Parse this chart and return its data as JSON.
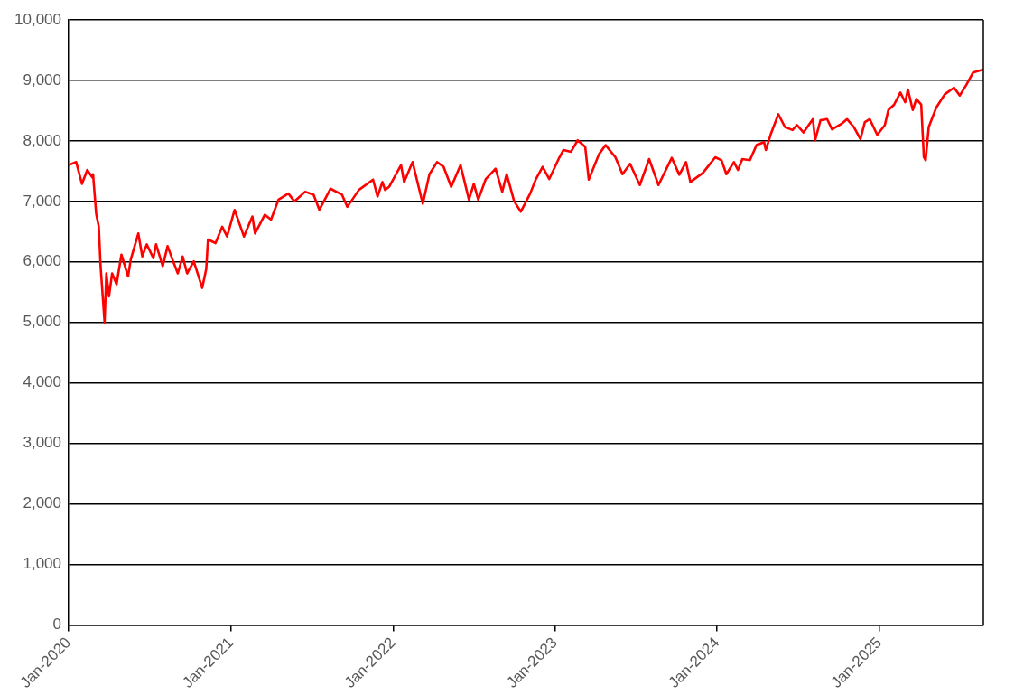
{
  "chart_data": {
    "type": "line",
    "x": [
      "2020-01-01",
      "2020-01-18",
      "2020-01-31",
      "2020-02-12",
      "2020-02-23",
      "2020-02-25",
      "2020-03-03",
      "2020-03-09",
      "2020-03-13",
      "2020-03-22",
      "2020-03-26",
      "2020-04-01",
      "2020-04-08",
      "2020-04-18",
      "2020-04-29",
      "2020-05-14",
      "2020-05-20",
      "2020-06-06",
      "2020-06-15",
      "2020-06-25",
      "2020-07-10",
      "2020-07-16",
      "2020-07-31",
      "2020-08-11",
      "2020-08-22",
      "2020-09-03",
      "2020-09-14",
      "2020-09-24",
      "2020-10-09",
      "2020-10-28",
      "2020-11-06",
      "2020-11-10",
      "2020-11-27",
      "2020-12-12",
      "2020-12-23",
      "2021-01-09",
      "2021-01-30",
      "2021-02-18",
      "2021-02-24",
      "2021-03-18",
      "2021-04-01",
      "2021-04-18",
      "2021-05-10",
      "2021-05-24",
      "2021-06-17",
      "2021-07-06",
      "2021-07-19",
      "2021-08-13",
      "2021-09-08",
      "2021-09-20",
      "2021-10-16",
      "2021-11-17",
      "2021-11-27",
      "2021-12-08",
      "2021-12-14",
      "2021-12-23",
      "2022-01-19",
      "2022-01-26",
      "2022-02-14",
      "2022-03-09",
      "2022-03-24",
      "2022-04-10",
      "2022-04-25",
      "2022-05-12",
      "2022-06-02",
      "2022-06-21",
      "2022-07-02",
      "2022-07-12",
      "2022-07-29",
      "2022-08-20",
      "2022-09-04",
      "2022-09-14",
      "2022-10-01",
      "2022-10-16",
      "2022-11-06",
      "2022-11-19",
      "2022-12-04",
      "2022-12-19",
      "2023-01-09",
      "2023-01-20",
      "2023-02-06",
      "2023-02-21",
      "2023-03-10",
      "2023-03-18",
      "2023-04-10",
      "2023-04-25",
      "2023-05-17",
      "2023-06-02",
      "2023-06-19",
      "2023-07-11",
      "2023-08-01",
      "2023-08-22",
      "2023-09-21",
      "2023-10-08",
      "2023-10-23",
      "2023-11-02",
      "2023-11-30",
      "2023-12-28",
      "2024-01-11",
      "2024-01-22",
      "2024-02-08",
      "2024-02-17",
      "2024-02-27",
      "2024-03-15",
      "2024-03-30",
      "2024-04-16",
      "2024-04-20",
      "2024-05-01",
      "2024-05-18",
      "2024-06-02",
      "2024-06-19",
      "2024-06-29",
      "2024-07-14",
      "2024-08-04",
      "2024-08-09",
      "2024-08-21",
      "2024-09-05",
      "2024-09-16",
      "2024-10-07",
      "2024-10-20",
      "2024-11-04",
      "2024-11-19",
      "2024-11-29",
      "2024-12-10",
      "2024-12-27",
      "2025-01-13",
      "2025-01-21",
      "2025-02-03",
      "2025-02-17",
      "2025-02-28",
      "2025-03-06",
      "2025-03-17",
      "2025-03-25",
      "2025-04-05",
      "2025-04-11",
      "2025-04-15",
      "2025-04-22",
      "2025-05-09",
      "2025-05-28",
      "2025-06-18",
      "2025-07-01",
      "2025-07-16",
      "2025-07-31",
      "2025-08-23"
    ],
    "series": [
      {
        "color": "#ff0000",
        "values": [
          7600,
          7650,
          7290,
          7520,
          7400,
          7450,
          6800,
          6580,
          5930,
          5000,
          5810,
          5430,
          5810,
          5630,
          6120,
          5760,
          6040,
          6470,
          6090,
          6290,
          6060,
          6290,
          5930,
          6260,
          6040,
          5810,
          6090,
          5810,
          6010,
          5570,
          5880,
          6370,
          6310,
          6580,
          6420,
          6860,
          6420,
          6750,
          6470,
          6780,
          6700,
          7030,
          7130,
          7000,
          7160,
          7110,
          6860,
          7210,
          7110,
          6910,
          7190,
          7360,
          7080,
          7320,
          7190,
          7240,
          7600,
          7320,
          7650,
          6960,
          7450,
          7650,
          7570,
          7240,
          7600,
          7030,
          7290,
          7030,
          7370,
          7540,
          7160,
          7450,
          7000,
          6830,
          7130,
          7370,
          7570,
          7370,
          7700,
          7850,
          7820,
          8010,
          7900,
          7360,
          7780,
          7930,
          7730,
          7450,
          7620,
          7270,
          7700,
          7270,
          7720,
          7440,
          7650,
          7320,
          7470,
          7730,
          7680,
          7450,
          7650,
          7520,
          7700,
          7680,
          7930,
          7980,
          7850,
          8110,
          8440,
          8230,
          8180,
          8260,
          8140,
          8360,
          8010,
          8340,
          8360,
          8190,
          8280,
          8360,
          8230,
          8030,
          8310,
          8360,
          8100,
          8260,
          8510,
          8600,
          8800,
          8640,
          8850,
          8510,
          8690,
          8600,
          7730,
          7680,
          8230,
          8550,
          8770,
          8880,
          8750,
          8930,
          9130,
          9180
        ]
      }
    ],
    "xlim": [
      "2020-01-01",
      "2025-08-23"
    ],
    "xticks": [
      {
        "value": "2020-01-01",
        "label": "Jan-2020"
      },
      {
        "value": "2021-01-01",
        "label": "Jan-2021"
      },
      {
        "value": "2022-01-01",
        "label": "Jan-2022"
      },
      {
        "value": "2023-01-01",
        "label": "Jan-2023"
      },
      {
        "value": "2024-01-01",
        "label": "Jan-2024"
      },
      {
        "value": "2025-01-01",
        "label": "Jan-2025"
      }
    ],
    "ylim": [
      0,
      10000
    ],
    "yticks": [
      0,
      {
        "value": 1000,
        "label": "1,000"
      },
      {
        "value": 2000,
        "label": "2,000"
      },
      {
        "value": 3000,
        "label": "3,000"
      },
      {
        "value": 4000,
        "label": "4,000"
      },
      {
        "value": 5000,
        "label": "5,000"
      },
      {
        "value": 6000,
        "label": "6,000"
      },
      {
        "value": 7000,
        "label": "7,000"
      },
      {
        "value": 8000,
        "label": "8,000"
      },
      {
        "value": 9000,
        "label": "9,000"
      },
      {
        "value": 10000,
        "label": "10,000"
      }
    ],
    "grid": "y",
    "legend": false,
    "marker": "none",
    "line_style": "solid"
  }
}
